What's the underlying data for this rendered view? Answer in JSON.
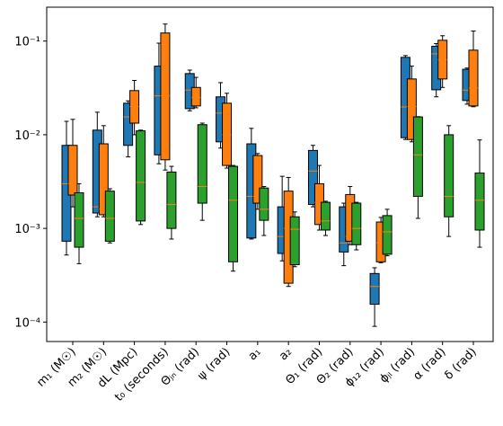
{
  "chart_data": {
    "type": "box",
    "categories": [
      "m₁ (M☉)",
      "m₂ (M☉)",
      "dL (Mpc)",
      "t₀ (seconds)",
      "Θⱼₙ (rad)",
      "ψ (rad)",
      "a₁",
      "a₂",
      "Θ₁ (rad)",
      "Θ₂ (rad)",
      "ϕ₁₂ (rad)",
      "ϕⱼₗ (rad)",
      "α (rad)",
      "δ (rad)"
    ],
    "log_scale": true,
    "median_color": "#ff7f0e",
    "ylim": [
      6.2e-05,
      0.23
    ],
    "yticks": [
      {
        "value": 0.0001,
        "label": "10⁻⁴"
      },
      {
        "value": 0.001,
        "label": "10⁻³"
      },
      {
        "value": 0.01,
        "label": "10⁻²"
      },
      {
        "value": 0.1,
        "label": "10⁻¹"
      }
    ],
    "series": [
      {
        "color": "#1f77b4",
        "boxes": [
          {
            "low": 0.00052,
            "q1": 0.00073,
            "median": 0.003,
            "q3": 0.0077,
            "high": 0.0139
          },
          {
            "low": 0.00133,
            "q1": 0.00146,
            "median": 0.0017,
            "q3": 0.0112,
            "high": 0.0174
          },
          {
            "low": 0.0058,
            "q1": 0.0077,
            "median": 0.0155,
            "q3": 0.0217,
            "high": 0.023
          },
          {
            "low": 0.0049,
            "q1": 0.0061,
            "median": 0.026,
            "q3": 0.054,
            "high": 0.095
          },
          {
            "low": 0.018,
            "q1": 0.019,
            "median": 0.03,
            "q3": 0.045,
            "high": 0.049
          },
          {
            "low": 0.0072,
            "q1": 0.0084,
            "median": 0.017,
            "q3": 0.0254,
            "high": 0.036
          },
          {
            "low": 0.00077,
            "q1": 0.00079,
            "median": 0.0022,
            "q3": 0.008,
            "high": 0.0117
          },
          {
            "low": 0.00045,
            "q1": 0.00054,
            "median": 0.00082,
            "q3": 0.0017,
            "high": 0.0036
          },
          {
            "low": 0.0017,
            "q1": 0.0018,
            "median": 0.0041,
            "q3": 0.0068,
            "high": 0.0077
          },
          {
            "low": 0.0004,
            "q1": 0.00056,
            "median": 0.0007,
            "q3": 0.0017,
            "high": 0.00186
          },
          {
            "low": 9e-05,
            "q1": 0.000155,
            "median": 0.00024,
            "q3": 0.00033,
            "high": 0.00038
          },
          {
            "low": 0.0089,
            "q1": 0.0093,
            "median": 0.0198,
            "q3": 0.067,
            "high": 0.07
          },
          {
            "low": 0.0254,
            "q1": 0.0302,
            "median": 0.073,
            "q3": 0.088,
            "high": 0.094
          },
          {
            "low": 0.0212,
            "q1": 0.0232,
            "median": 0.03,
            "q3": 0.05,
            "high": 0.0515
          }
        ]
      },
      {
        "color": "#ff7f0e",
        "boxes": [
          {
            "low": 0.0017,
            "q1": 0.00227,
            "median": 0.003,
            "q3": 0.0077,
            "high": 0.0146
          },
          {
            "low": 0.00133,
            "q1": 0.0014,
            "median": 0.0016,
            "q3": 0.008,
            "high": 0.0125
          },
          {
            "low": 0.01,
            "q1": 0.0133,
            "median": 0.02,
            "q3": 0.0296,
            "high": 0.038
          },
          {
            "low": 0.0042,
            "q1": 0.0054,
            "median": 0.026,
            "q3": 0.122,
            "high": 0.152
          },
          {
            "low": 0.0194,
            "q1": 0.0203,
            "median": 0.025,
            "q3": 0.032,
            "high": 0.041
          },
          {
            "low": 0.0044,
            "q1": 0.0047,
            "median": 0.01,
            "q3": 0.0217,
            "high": 0.0277
          },
          {
            "low": 0.0016,
            "q1": 0.00186,
            "median": 0.0022,
            "q3": 0.006,
            "high": 0.0063
          },
          {
            "low": 0.00024,
            "q1": 0.00026,
            "median": 0.001,
            "q3": 0.0025,
            "high": 0.0035
          },
          {
            "low": 0.00096,
            "q1": 0.0011,
            "median": 0.0019,
            "q3": 0.003,
            "high": 0.0047
          },
          {
            "low": 0.00067,
            "q1": 0.00073,
            "median": 0.00082,
            "q3": 0.0023,
            "high": 0.0028
          },
          {
            "low": 0.00043,
            "q1": 0.00044,
            "median": 0.0007,
            "q3": 0.00117,
            "high": 0.00131
          },
          {
            "low": 0.0084,
            "q1": 0.0089,
            "median": 0.02,
            "q3": 0.0394,
            "high": 0.054
          },
          {
            "low": 0.032,
            "q1": 0.0394,
            "median": 0.063,
            "q3": 0.102,
            "high": 0.114
          },
          {
            "low": 0.0199,
            "q1": 0.0203,
            "median": 0.0316,
            "q3": 0.08,
            "high": 0.128
          }
        ]
      },
      {
        "color": "#2ca02c",
        "boxes": [
          {
            "low": 0.00042,
            "q1": 0.00063,
            "median": 0.00128,
            "q3": 0.0024,
            "high": 0.003
          },
          {
            "low": 0.0007,
            "q1": 0.00073,
            "median": 0.00128,
            "q3": 0.0025,
            "high": 0.00265
          },
          {
            "low": 0.0011,
            "q1": 0.0012,
            "median": 0.0031,
            "q3": 0.011,
            "high": 0.0112
          },
          {
            "low": 0.00077,
            "q1": 0.001,
            "median": 0.0018,
            "q3": 0.004,
            "high": 0.0046
          },
          {
            "low": 0.00122,
            "q1": 0.00186,
            "median": 0.0028,
            "q3": 0.0128,
            "high": 0.0133
          },
          {
            "low": 0.00035,
            "q1": 0.00044,
            "median": 0.002,
            "q3": 0.0046,
            "high": 0.0047
          },
          {
            "low": 0.00084,
            "q1": 0.00122,
            "median": 0.0016,
            "q3": 0.0027,
            "high": 0.0028
          },
          {
            "low": 0.00039,
            "q1": 0.00041,
            "median": 0.00098,
            "q3": 0.00133,
            "high": 0.0015
          },
          {
            "low": 0.00084,
            "q1": 0.00096,
            "median": 0.0012,
            "q3": 0.0019,
            "high": 0.00195
          },
          {
            "low": 0.00059,
            "q1": 0.00067,
            "median": 0.001,
            "q3": 0.00186,
            "high": 0.0019
          },
          {
            "low": 0.00051,
            "q1": 0.00053,
            "median": 0.00092,
            "q3": 0.00137,
            "high": 0.0016
          },
          {
            "low": 0.00128,
            "q1": 0.0022,
            "median": 0.0061,
            "q3": 0.0155,
            "high": 0.0156
          },
          {
            "low": 0.00082,
            "q1": 0.00133,
            "median": 0.0022,
            "q3": 0.01,
            "high": 0.0125
          },
          {
            "low": 0.00063,
            "q1": 0.00096,
            "median": 0.002,
            "q3": 0.0039,
            "high": 0.0088
          }
        ]
      }
    ]
  }
}
